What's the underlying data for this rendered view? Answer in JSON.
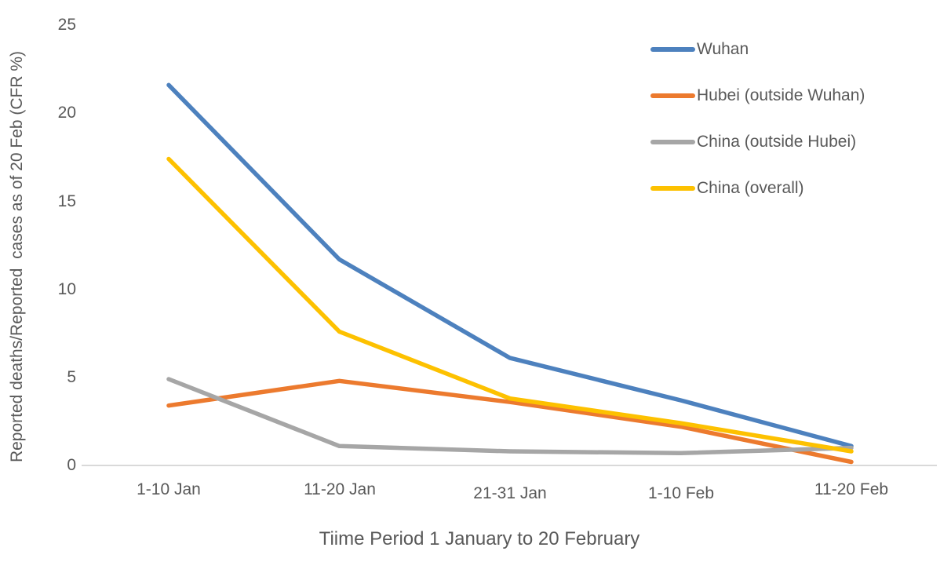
{
  "chart_data": {
    "type": "line",
    "title": "",
    "xlabel": "Tiime Period 1 January to 20 February",
    "ylabel": "Reported deaths/Reported  cases as of 20 Feb (CFR %)",
    "categories": [
      "1-10 Jan",
      "11-20 Jan",
      "21-31 Jan",
      "1-10 Feb",
      "11-20 Feb"
    ],
    "series": [
      {
        "name": "Wuhan",
        "color": "#4D81BE",
        "values": [
          21.6,
          11.7,
          6.1,
          3.7,
          1.1
        ]
      },
      {
        "name": "Hubei (outside Wuhan)",
        "color": "#EC7A2E",
        "values": [
          3.4,
          4.8,
          3.6,
          2.2,
          0.2
        ]
      },
      {
        "name": "China (outside Hubei)",
        "color": "#A6A6A6",
        "values": [
          4.9,
          1.1,
          0.8,
          0.7,
          1.0
        ]
      },
      {
        "name": "China (overall)",
        "color": "#FDC100",
        "values": [
          17.4,
          7.6,
          3.8,
          2.4,
          0.8
        ]
      }
    ],
    "yticks": [
      "0",
      "5",
      "10",
      "15",
      "20",
      "25"
    ],
    "ylim": [
      0,
      25
    ],
    "grid": false,
    "legend_position": "top-right",
    "axis_line_color": "#D9D9D9",
    "text_color": "#595959"
  }
}
